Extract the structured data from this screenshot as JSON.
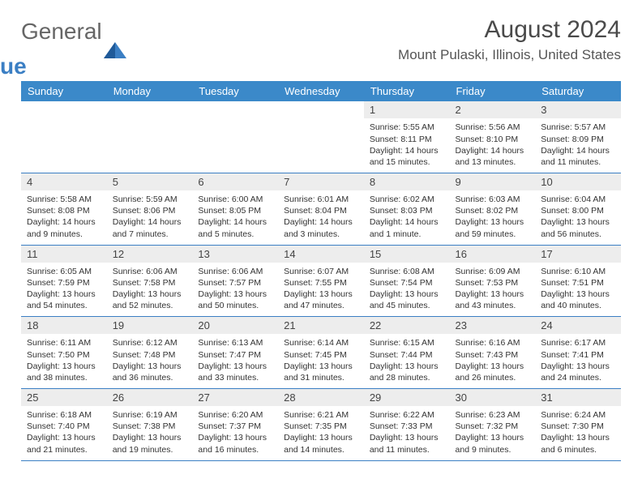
{
  "logo": {
    "text1": "General",
    "text2": "Blue"
  },
  "title": "August 2024",
  "subtitle": "Mount Pulaski, Illinois, United States",
  "colors": {
    "header_bg": "#3b89c9",
    "header_fg": "#ffffff",
    "daynum_bg": "#ededed",
    "border": "#3b7fc4",
    "title_color": "#4a4a4a"
  },
  "day_headers": [
    "Sunday",
    "Monday",
    "Tuesday",
    "Wednesday",
    "Thursday",
    "Friday",
    "Saturday"
  ],
  "weeks": [
    [
      null,
      null,
      null,
      null,
      {
        "n": "1",
        "sr": "5:55 AM",
        "ss": "8:11 PM",
        "dl": "14 hours and 15 minutes."
      },
      {
        "n": "2",
        "sr": "5:56 AM",
        "ss": "8:10 PM",
        "dl": "14 hours and 13 minutes."
      },
      {
        "n": "3",
        "sr": "5:57 AM",
        "ss": "8:09 PM",
        "dl": "14 hours and 11 minutes."
      }
    ],
    [
      {
        "n": "4",
        "sr": "5:58 AM",
        "ss": "8:08 PM",
        "dl": "14 hours and 9 minutes."
      },
      {
        "n": "5",
        "sr": "5:59 AM",
        "ss": "8:06 PM",
        "dl": "14 hours and 7 minutes."
      },
      {
        "n": "6",
        "sr": "6:00 AM",
        "ss": "8:05 PM",
        "dl": "14 hours and 5 minutes."
      },
      {
        "n": "7",
        "sr": "6:01 AM",
        "ss": "8:04 PM",
        "dl": "14 hours and 3 minutes."
      },
      {
        "n": "8",
        "sr": "6:02 AM",
        "ss": "8:03 PM",
        "dl": "14 hours and 1 minute."
      },
      {
        "n": "9",
        "sr": "6:03 AM",
        "ss": "8:02 PM",
        "dl": "13 hours and 59 minutes."
      },
      {
        "n": "10",
        "sr": "6:04 AM",
        "ss": "8:00 PM",
        "dl": "13 hours and 56 minutes."
      }
    ],
    [
      {
        "n": "11",
        "sr": "6:05 AM",
        "ss": "7:59 PM",
        "dl": "13 hours and 54 minutes."
      },
      {
        "n": "12",
        "sr": "6:06 AM",
        "ss": "7:58 PM",
        "dl": "13 hours and 52 minutes."
      },
      {
        "n": "13",
        "sr": "6:06 AM",
        "ss": "7:57 PM",
        "dl": "13 hours and 50 minutes."
      },
      {
        "n": "14",
        "sr": "6:07 AM",
        "ss": "7:55 PM",
        "dl": "13 hours and 47 minutes."
      },
      {
        "n": "15",
        "sr": "6:08 AM",
        "ss": "7:54 PM",
        "dl": "13 hours and 45 minutes."
      },
      {
        "n": "16",
        "sr": "6:09 AM",
        "ss": "7:53 PM",
        "dl": "13 hours and 43 minutes."
      },
      {
        "n": "17",
        "sr": "6:10 AM",
        "ss": "7:51 PM",
        "dl": "13 hours and 40 minutes."
      }
    ],
    [
      {
        "n": "18",
        "sr": "6:11 AM",
        "ss": "7:50 PM",
        "dl": "13 hours and 38 minutes."
      },
      {
        "n": "19",
        "sr": "6:12 AM",
        "ss": "7:48 PM",
        "dl": "13 hours and 36 minutes."
      },
      {
        "n": "20",
        "sr": "6:13 AM",
        "ss": "7:47 PM",
        "dl": "13 hours and 33 minutes."
      },
      {
        "n": "21",
        "sr": "6:14 AM",
        "ss": "7:45 PM",
        "dl": "13 hours and 31 minutes."
      },
      {
        "n": "22",
        "sr": "6:15 AM",
        "ss": "7:44 PM",
        "dl": "13 hours and 28 minutes."
      },
      {
        "n": "23",
        "sr": "6:16 AM",
        "ss": "7:43 PM",
        "dl": "13 hours and 26 minutes."
      },
      {
        "n": "24",
        "sr": "6:17 AM",
        "ss": "7:41 PM",
        "dl": "13 hours and 24 minutes."
      }
    ],
    [
      {
        "n": "25",
        "sr": "6:18 AM",
        "ss": "7:40 PM",
        "dl": "13 hours and 21 minutes."
      },
      {
        "n": "26",
        "sr": "6:19 AM",
        "ss": "7:38 PM",
        "dl": "13 hours and 19 minutes."
      },
      {
        "n": "27",
        "sr": "6:20 AM",
        "ss": "7:37 PM",
        "dl": "13 hours and 16 minutes."
      },
      {
        "n": "28",
        "sr": "6:21 AM",
        "ss": "7:35 PM",
        "dl": "13 hours and 14 minutes."
      },
      {
        "n": "29",
        "sr": "6:22 AM",
        "ss": "7:33 PM",
        "dl": "13 hours and 11 minutes."
      },
      {
        "n": "30",
        "sr": "6:23 AM",
        "ss": "7:32 PM",
        "dl": "13 hours and 9 minutes."
      },
      {
        "n": "31",
        "sr": "6:24 AM",
        "ss": "7:30 PM",
        "dl": "13 hours and 6 minutes."
      }
    ]
  ],
  "labels": {
    "sunrise": "Sunrise: ",
    "sunset": "Sunset: ",
    "daylight": "Daylight: "
  }
}
